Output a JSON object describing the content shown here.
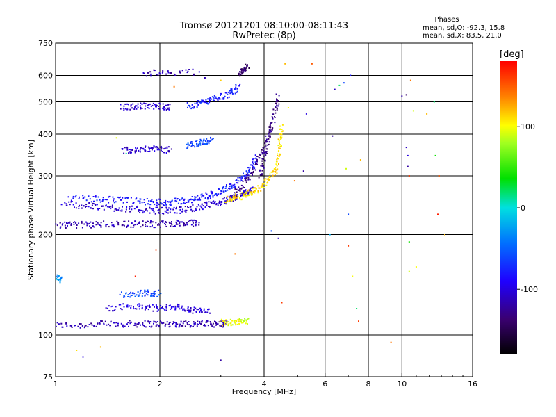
{
  "chart_data": {
    "type": "scatter",
    "title": "Tromsø 20121201 08:10:00-08:11:43",
    "subtitle": "RwPretec (8p)",
    "xlabel": "Frequency [MHz]",
    "ylabel": "Stationary phase Virtual Height [km]",
    "x_scale": "log",
    "y_scale": "log",
    "xlim": [
      1,
      16
    ],
    "ylim": [
      75,
      750
    ],
    "x_ticks": [
      1,
      2,
      4,
      6,
      8,
      10,
      16
    ],
    "x_tick_labels": [
      "1",
      "2",
      "4",
      "6",
      "8",
      "10",
      "16"
    ],
    "y_ticks": [
      75,
      100,
      200,
      300,
      400,
      500,
      600,
      750
    ],
    "y_tick_labels": [
      "75",
      "100",
      "200",
      "300",
      "400",
      "500",
      "600",
      "750"
    ],
    "grid": true,
    "colorbar": {
      "label": "[deg]",
      "range": [
        -180,
        180
      ],
      "ticks": [
        100,
        0,
        -100
      ],
      "tick_labels": [
        "100",
        "0",
        "-100"
      ]
    },
    "info": {
      "heading": "Phases",
      "line_o": "mean, sd,O: -92.3, 15.8",
      "line_x": "mean, sd,X:  83.5, 21.0"
    },
    "traces": [
      {
        "f": [
          1.0,
          1.2,
          1.4,
          1.6,
          1.8,
          2.0,
          2.2,
          2.4,
          2.6,
          2.8,
          3.0,
          3.1
        ],
        "h": [
          107,
          107,
          108,
          108,
          108,
          108,
          108,
          108,
          108,
          108,
          108,
          108
        ],
        "phase": -115
      },
      {
        "f": [
          3.0,
          3.2,
          3.4,
          3.6
        ],
        "h": [
          109,
          109,
          110,
          110
        ],
        "phase": 95
      },
      {
        "f": [
          1.4,
          1.6,
          1.8,
          2.0,
          2.2,
          2.4,
          2.6,
          2.8
        ],
        "h": [
          120,
          122,
          121,
          120,
          122,
          119,
          118,
          117
        ],
        "phase": -100
      },
      {
        "f": [
          1.55,
          1.7,
          1.85,
          2.0
        ],
        "h": [
          132,
          133,
          134,
          133
        ],
        "phase": -60
      },
      {
        "f": [
          1.0,
          1.05
        ],
        "h": [
          150,
          145
        ],
        "phase": -30
      },
      {
        "f": [
          1.0,
          1.1,
          1.25,
          1.4,
          1.6,
          1.8,
          2.0,
          2.2,
          2.4,
          2.6
        ],
        "h": [
          214,
          214,
          214,
          215,
          215,
          215,
          215,
          216,
          216,
          217
        ],
        "phase": -115
      },
      {
        "f": [
          1.05,
          1.2,
          1.35,
          1.5,
          1.7,
          1.9,
          2.1,
          2.3,
          2.5,
          2.7,
          2.9,
          3.1,
          3.3,
          3.5,
          3.7
        ],
        "h": [
          248,
          244,
          242,
          240,
          238,
          236,
          236,
          237,
          240,
          244,
          248,
          253,
          258,
          265,
          272
        ],
        "phase": -105
      },
      {
        "f": [
          1.1,
          1.3,
          1.5,
          1.7,
          1.9,
          2.1,
          2.3,
          2.5,
          2.7,
          2.9,
          3.1,
          3.3,
          3.5,
          3.7,
          3.8
        ],
        "h": [
          258,
          256,
          254,
          252,
          250,
          250,
          252,
          255,
          260,
          266,
          274,
          284,
          298,
          318,
          345
        ],
        "phase": -80
      },
      {
        "f": [
          3.1,
          3.3,
          3.5,
          3.7,
          3.9,
          4.1,
          4.3,
          4.4,
          4.45,
          4.5
        ],
        "h": [
          255,
          258,
          262,
          268,
          276,
          290,
          310,
          340,
          380,
          430
        ],
        "phase": 110
      },
      {
        "f": [
          3.3,
          3.5,
          3.7,
          3.9,
          4.1
        ],
        "h": [
          265,
          285,
          310,
          345,
          395
        ],
        "phase": -130
      },
      {
        "f": [
          1.55,
          1.7,
          1.85,
          2.0,
          2.15
        ],
        "h": [
          358,
          360,
          362,
          360,
          358
        ],
        "phase": -105
      },
      {
        "f": [
          2.4,
          2.55,
          2.7,
          2.85
        ],
        "h": [
          370,
          375,
          380,
          385
        ],
        "phase": -60
      },
      {
        "f": [
          1.55,
          1.7,
          1.85,
          2.0,
          2.15
        ],
        "h": [
          480,
          485,
          488,
          485,
          482
        ],
        "phase": -105
      },
      {
        "f": [
          2.4,
          2.6,
          2.8,
          3.0,
          3.2,
          3.4
        ],
        "h": [
          485,
          495,
          505,
          515,
          530,
          560
        ],
        "phase": -80
      },
      {
        "f": [
          3.4,
          3.5,
          3.6
        ],
        "h": [
          610,
          625,
          640
        ],
        "phase": -140
      },
      {
        "f": [
          1.8,
          2.1,
          2.6
        ],
        "h": [
          610,
          612,
          615
        ],
        "phase": -115
      },
      {
        "f": [
          3.9,
          4.0,
          4.1,
          4.2,
          4.3,
          4.4
        ],
        "h": [
          300,
          340,
          380,
          420,
          470,
          520
        ],
        "phase": -130
      }
    ],
    "isolated_points": [
      {
        "f": 1.35,
        "h": 92,
        "phase": 120
      },
      {
        "f": 1.15,
        "h": 90,
        "phase": 110
      },
      {
        "f": 1.2,
        "h": 86,
        "phase": -100
      },
      {
        "f": 3.0,
        "h": 84,
        "phase": -120
      },
      {
        "f": 1.5,
        "h": 390,
        "phase": 95
      },
      {
        "f": 1.6,
        "h": 350,
        "phase": 10
      },
      {
        "f": 2.7,
        "h": 590,
        "phase": -115
      },
      {
        "f": 3.0,
        "h": 580,
        "phase": 115
      },
      {
        "f": 2.2,
        "h": 555,
        "phase": 140
      },
      {
        "f": 1.95,
        "h": 180,
        "phase": 160
      },
      {
        "f": 1.7,
        "h": 150,
        "phase": 170
      },
      {
        "f": 3.3,
        "h": 175,
        "phase": 140
      },
      {
        "f": 4.2,
        "h": 205,
        "phase": -60
      },
      {
        "f": 4.4,
        "h": 195,
        "phase": -110
      },
      {
        "f": 4.5,
        "h": 125,
        "phase": 160
      },
      {
        "f": 4.6,
        "h": 650,
        "phase": 120
      },
      {
        "f": 4.7,
        "h": 480,
        "phase": 100
      },
      {
        "f": 4.9,
        "h": 290,
        "phase": 140
      },
      {
        "f": 5.2,
        "h": 310,
        "phase": -120
      },
      {
        "f": 5.3,
        "h": 460,
        "phase": -100
      },
      {
        "f": 5.5,
        "h": 650,
        "phase": 150
      },
      {
        "f": 6.2,
        "h": 200,
        "phase": -20
      },
      {
        "f": 6.3,
        "h": 395,
        "phase": -120
      },
      {
        "f": 6.4,
        "h": 545,
        "phase": -110
      },
      {
        "f": 6.6,
        "h": 560,
        "phase": 20
      },
      {
        "f": 6.8,
        "h": 570,
        "phase": -60
      },
      {
        "f": 6.9,
        "h": 315,
        "phase": 90
      },
      {
        "f": 7.0,
        "h": 230,
        "phase": -60
      },
      {
        "f": 7.0,
        "h": 185,
        "phase": 160
      },
      {
        "f": 7.1,
        "h": 600,
        "phase": -80
      },
      {
        "f": 7.2,
        "h": 150,
        "phase": 100
      },
      {
        "f": 7.4,
        "h": 120,
        "phase": 20
      },
      {
        "f": 7.6,
        "h": 335,
        "phase": 120
      },
      {
        "f": 7.5,
        "h": 110,
        "phase": 160
      },
      {
        "f": 9.3,
        "h": 95,
        "phase": 140
      },
      {
        "f": 10.0,
        "h": 520,
        "phase": -120
      },
      {
        "f": 10.3,
        "h": 525,
        "phase": -140
      },
      {
        "f": 10.3,
        "h": 365,
        "phase": -110
      },
      {
        "f": 10.4,
        "h": 345,
        "phase": -100
      },
      {
        "f": 10.4,
        "h": 320,
        "phase": -120
      },
      {
        "f": 10.5,
        "h": 190,
        "phase": 40
      },
      {
        "f": 10.5,
        "h": 155,
        "phase": 90
      },
      {
        "f": 10.8,
        "h": 470,
        "phase": 90
      },
      {
        "f": 10.5,
        "h": 300,
        "phase": 160
      },
      {
        "f": 11.0,
        "h": 160,
        "phase": 100
      },
      {
        "f": 11.8,
        "h": 460,
        "phase": 120
      },
      {
        "f": 12.4,
        "h": 500,
        "phase": 20
      },
      {
        "f": 12.5,
        "h": 345,
        "phase": 40
      },
      {
        "f": 12.7,
        "h": 230,
        "phase": 170
      },
      {
        "f": 12.8,
        "h": 300,
        "phase": 150
      },
      {
        "f": 13.3,
        "h": 200,
        "phase": 120
      },
      {
        "f": 10.6,
        "h": 580,
        "phase": 140
      }
    ]
  }
}
